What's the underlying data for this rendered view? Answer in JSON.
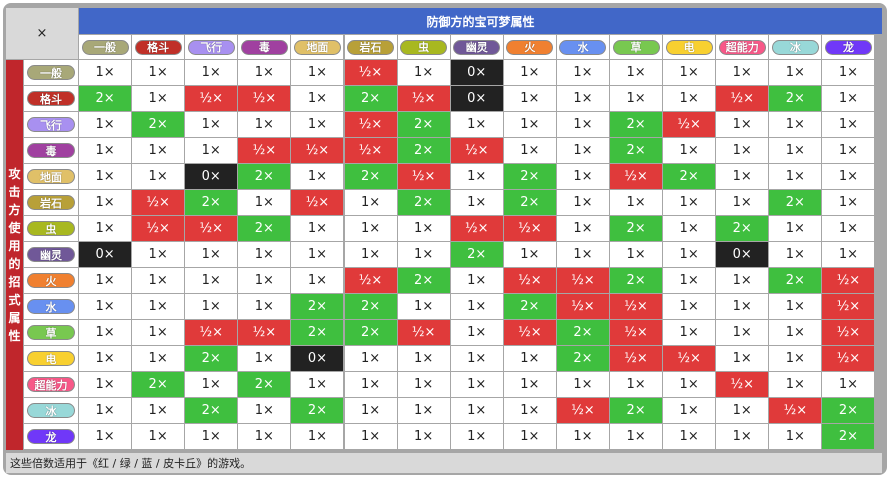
{
  "corner_label": "×",
  "defense_title": "防御方的宝可梦属性",
  "attack_title_chars": [
    "攻",
    "击",
    "方",
    "使",
    "用",
    "的",
    "招",
    "式",
    "属",
    "性"
  ],
  "types": [
    {
      "name": "一般",
      "color": "#a8a878"
    },
    {
      "name": "格斗",
      "color": "#c03028"
    },
    {
      "name": "飞行",
      "color": "#a890f0"
    },
    {
      "name": "毒",
      "color": "#a040a0"
    },
    {
      "name": "地面",
      "color": "#e0c068"
    },
    {
      "name": "岩石",
      "color": "#b8a038"
    },
    {
      "name": "虫",
      "color": "#a8b820"
    },
    {
      "name": "幽灵",
      "color": "#705898"
    },
    {
      "name": "火",
      "color": "#f08030"
    },
    {
      "name": "水",
      "color": "#6890f0"
    },
    {
      "name": "草",
      "color": "#78c850"
    },
    {
      "name": "电",
      "color": "#f8d030"
    },
    {
      "name": "超能力",
      "color": "#f85888"
    },
    {
      "name": "冰",
      "color": "#98d8d8"
    },
    {
      "name": "龙",
      "color": "#7038f8"
    }
  ],
  "labels": {
    "1": "1×",
    "2": "2×",
    "h": "½×",
    "0": "0×"
  },
  "matrix": [
    [
      "1",
      "1",
      "1",
      "1",
      "1",
      "h",
      "1",
      "0",
      "1",
      "1",
      "1",
      "1",
      "1",
      "1",
      "1"
    ],
    [
      "2",
      "1",
      "h",
      "h",
      "1",
      "2",
      "h",
      "0",
      "1",
      "1",
      "1",
      "1",
      "h",
      "2",
      "1"
    ],
    [
      "1",
      "2",
      "1",
      "1",
      "1",
      "h",
      "2",
      "1",
      "1",
      "1",
      "2",
      "h",
      "1",
      "1",
      "1"
    ],
    [
      "1",
      "1",
      "1",
      "h",
      "h",
      "h",
      "2",
      "h",
      "1",
      "1",
      "2",
      "1",
      "1",
      "1",
      "1"
    ],
    [
      "1",
      "1",
      "0",
      "2",
      "1",
      "2",
      "h",
      "1",
      "2",
      "1",
      "h",
      "2",
      "1",
      "1",
      "1"
    ],
    [
      "1",
      "h",
      "2",
      "1",
      "h",
      "1",
      "2",
      "1",
      "2",
      "1",
      "1",
      "1",
      "1",
      "2",
      "1"
    ],
    [
      "1",
      "h",
      "h",
      "2",
      "1",
      "1",
      "1",
      "h",
      "h",
      "1",
      "2",
      "1",
      "2",
      "1",
      "1"
    ],
    [
      "0",
      "1",
      "1",
      "1",
      "1",
      "1",
      "1",
      "2",
      "1",
      "1",
      "1",
      "1",
      "0",
      "1",
      "1"
    ],
    [
      "1",
      "1",
      "1",
      "1",
      "1",
      "h",
      "2",
      "1",
      "h",
      "h",
      "2",
      "1",
      "1",
      "2",
      "h"
    ],
    [
      "1",
      "1",
      "1",
      "1",
      "2",
      "2",
      "1",
      "1",
      "2",
      "h",
      "h",
      "1",
      "1",
      "1",
      "h"
    ],
    [
      "1",
      "1",
      "h",
      "h",
      "2",
      "2",
      "h",
      "1",
      "h",
      "2",
      "h",
      "1",
      "1",
      "1",
      "h"
    ],
    [
      "1",
      "1",
      "2",
      "1",
      "0",
      "1",
      "1",
      "1",
      "1",
      "2",
      "h",
      "h",
      "1",
      "1",
      "h"
    ],
    [
      "1",
      "2",
      "1",
      "2",
      "1",
      "1",
      "1",
      "1",
      "1",
      "1",
      "1",
      "1",
      "h",
      "1",
      "1"
    ],
    [
      "1",
      "1",
      "2",
      "1",
      "2",
      "1",
      "1",
      "1",
      "1",
      "h",
      "2",
      "1",
      "1",
      "h",
      "2"
    ],
    [
      "1",
      "1",
      "1",
      "1",
      "1",
      "1",
      "1",
      "1",
      "1",
      "1",
      "1",
      "1",
      "1",
      "1",
      "2"
    ]
  ],
  "footer_note": "这些倍数适用于《红 / 绿 / 蓝 / 皮卡丘》的游戏。"
}
